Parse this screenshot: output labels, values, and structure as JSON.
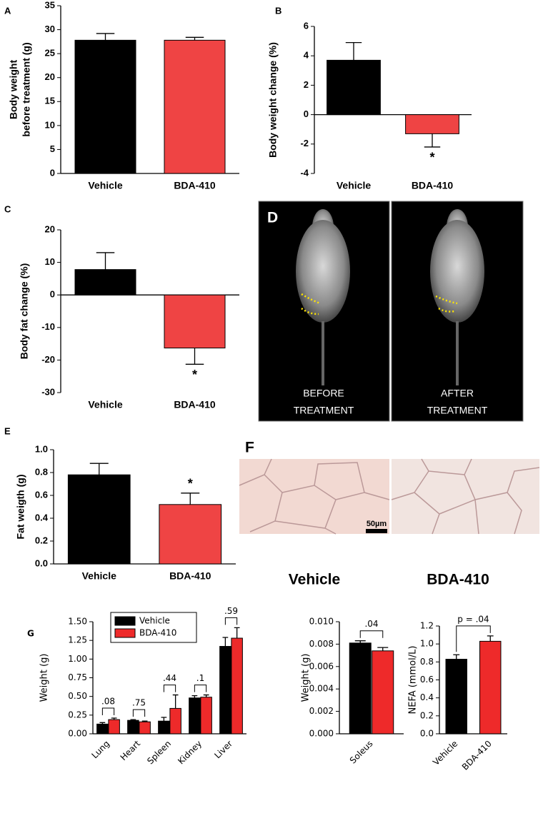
{
  "chart_data": [
    {
      "type": "bar",
      "panel": "A",
      "ylabel": [
        "Body weight",
        "before treatment (g)"
      ],
      "categories": [
        "Vehicle",
        "BDA-410"
      ],
      "values": [
        27.8,
        27.8
      ],
      "errors": [
        1.4,
        0.6
      ],
      "colors": [
        "#000000",
        "#ef4444"
      ],
      "ylim": [
        0,
        35
      ],
      "yticks": [
        0,
        5,
        10,
        15,
        20,
        25,
        30,
        35
      ]
    },
    {
      "type": "bar",
      "panel": "B",
      "ylabel": "Body weight change (%)",
      "categories": [
        "Vehicle",
        "BDA-410"
      ],
      "values": [
        3.7,
        -1.3
      ],
      "errors": [
        1.2,
        0.9
      ],
      "significance": [
        null,
        "*"
      ],
      "colors": [
        "#000000",
        "#ef4444"
      ],
      "ylim": [
        -4,
        6
      ],
      "yticks": [
        -4,
        -2,
        0,
        2,
        4,
        6
      ]
    },
    {
      "type": "bar",
      "panel": "C",
      "ylabel": "Body fat change (%)",
      "categories": [
        "Vehicle",
        "BDA-410"
      ],
      "values": [
        7.8,
        -16.3
      ],
      "errors": [
        5.2,
        5.0
      ],
      "significance": [
        null,
        "*"
      ],
      "colors": [
        "#000000",
        "#ef4444"
      ],
      "ylim": [
        -30,
        20
      ],
      "yticks": [
        -30,
        -20,
        -10,
        0,
        10,
        20
      ]
    },
    {
      "type": "bar",
      "panel": "E",
      "ylabel": "Fat weigth (g)",
      "categories": [
        "Vehicle",
        "BDA-410"
      ],
      "values": [
        0.78,
        0.52
      ],
      "errors": [
        0.1,
        0.1
      ],
      "significance": [
        null,
        "*"
      ],
      "colors": [
        "#000000",
        "#ef4444"
      ],
      "ylim": [
        0,
        1
      ],
      "yticks": [
        {
          "value": 0,
          "label": "0.0"
        },
        0.2,
        0.4,
        0.6,
        0.8,
        {
          "value": 1,
          "label": "1.0"
        }
      ]
    },
    {
      "type": "grouped_bar",
      "panel": "G",
      "ylabel": "Weight (g)",
      "categories": [
        "Lung",
        "Heart",
        "Spleen",
        "Kidney",
        "Liver"
      ],
      "series": [
        {
          "name": "Vehicle",
          "color": "#000000",
          "values": [
            0.13,
            0.18,
            0.17,
            0.48,
            1.17
          ],
          "errors": [
            0.02,
            0.01,
            0.05,
            0.03,
            0.12
          ]
        },
        {
          "name": "BDA-410",
          "color": "#ee2a2a",
          "values": [
            0.19,
            0.16,
            0.34,
            0.49,
            1.28
          ],
          "errors": [
            0.02,
            0.01,
            0.18,
            0.03,
            0.14
          ]
        }
      ],
      "p_values": [
        ".08",
        ".75",
        ".44",
        ".1",
        ".59"
      ],
      "legend": "upper left",
      "ylim": [
        0,
        1.5
      ],
      "yticks": [
        {
          "value": 0,
          "label": "0.00"
        },
        0.25,
        {
          "value": 0.5,
          "label": "0.50"
        },
        0.75,
        {
          "value": 1,
          "label": "1.00"
        },
        1.25,
        {
          "value": 1.5,
          "label": "1.50"
        }
      ]
    },
    {
      "type": "grouped_bar",
      "ylabel": "Weight (g)",
      "categories": [
        "Soleus"
      ],
      "series": [
        {
          "name": "Vehicle",
          "color": "#000000",
          "values": [
            0.0081
          ],
          "errors": [
            0.0002
          ]
        },
        {
          "name": "BDA-410",
          "color": "#ee2a2a",
          "values": [
            0.0074
          ],
          "errors": [
            0.0003
          ]
        }
      ],
      "p_values": [
        ".04"
      ],
      "ylim": [
        0,
        0.01
      ],
      "yticks": [
        {
          "value": 0,
          "label": "0.000"
        },
        {
          "value": 0.002,
          "label": "0.002"
        },
        {
          "value": 0.004,
          "label": "0.004"
        },
        {
          "value": 0.006,
          "label": "0.006"
        },
        {
          "value": 0.008,
          "label": "0.008"
        },
        {
          "value": 0.01,
          "label": "0.010"
        }
      ]
    },
    {
      "type": "bar",
      "ylabel": "NEFA (mmol/L)",
      "categories": [
        "Vehicle",
        "BDA-410"
      ],
      "values": [
        0.83,
        1.03
      ],
      "errors": [
        0.05,
        0.06
      ],
      "colors": [
        "#000000",
        "#ee2a2a"
      ],
      "comparison": "p = .04",
      "ylim": [
        0,
        1.2
      ],
      "yticks": [
        {
          "value": 0,
          "label": "0.0"
        },
        0.2,
        0.4,
        0.6,
        0.8,
        {
          "value": 1,
          "label": "1.0"
        },
        1.2
      ]
    }
  ],
  "figure_d": {
    "panel": "D",
    "labels": [
      [
        "BEFORE",
        "TREATMENT"
      ],
      [
        "AFTER",
        "TREATMENT"
      ]
    ]
  },
  "figure_f": {
    "panel": "F",
    "scale_bar": "50µm",
    "labels": [
      "Vehicle",
      "BDA-410"
    ]
  }
}
